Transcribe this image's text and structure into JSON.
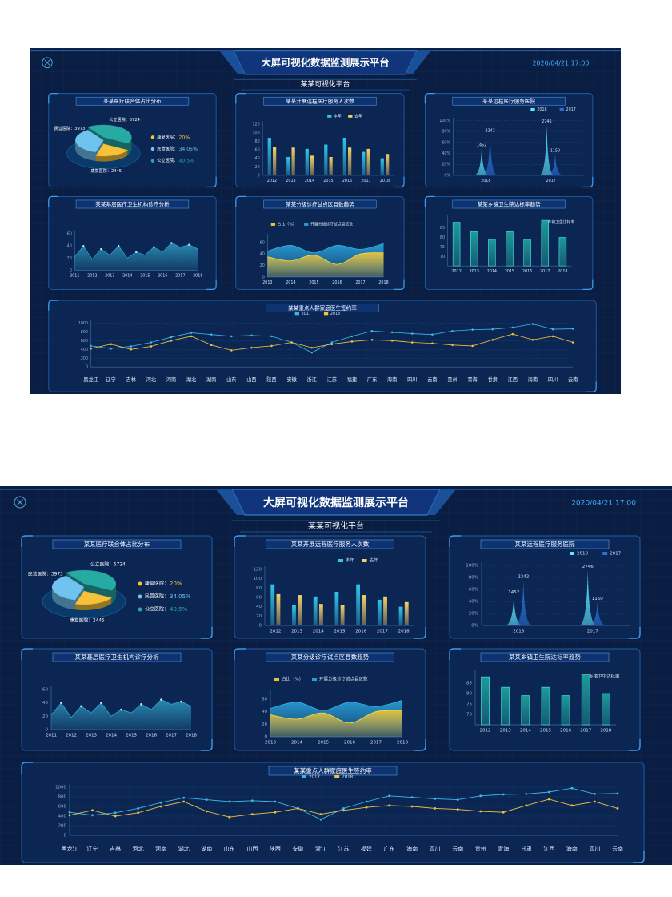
{
  "header": {
    "title": "大屏可视化数据监测展示平台",
    "subtitle": "某某可视化平台",
    "datetime": "2020/04/21 17:00"
  },
  "chart_data": [
    {
      "type": "pie",
      "title": "某某医疗联合体占比分布",
      "categories": [
        "康复医院",
        "民营医院",
        "公立医院"
      ],
      "legend_labels": [
        "康复医院：",
        "民营医院：",
        "公立医院："
      ],
      "values": [
        20,
        34.05,
        40.5
      ],
      "value_labels": [
        "20%",
        "34.05%",
        "40.5%"
      ],
      "colors": [
        "#f5c23a",
        "#6fc3f0",
        "#27a9a4"
      ],
      "counts": [
        2445,
        3973,
        5724
      ],
      "count_labels": [
        "康复医院：2445",
        "民营医院：3973",
        "公立医院：5724"
      ]
    },
    {
      "type": "bar",
      "title": "某某开展远程医疗服务人次数",
      "categories": [
        "2012",
        "2013",
        "2014",
        "2015",
        "2016",
        "2017",
        "2018"
      ],
      "series": [
        {
          "name": "本年",
          "color": "#31c6ea",
          "values": [
            88,
            43,
            62,
            72,
            88,
            55,
            40
          ]
        },
        {
          "name": "去年",
          "color": "#f4d068",
          "values": [
            67,
            65,
            46,
            43,
            65,
            62,
            50
          ]
        }
      ],
      "ylim": [
        0,
        120
      ],
      "yticks": [
        0,
        20,
        40,
        60,
        80,
        100,
        120
      ],
      "grid": false
    },
    {
      "type": "pictorial",
      "title": "某某远程医疗服务医院",
      "categories": [
        "2018",
        "2017"
      ],
      "series": [
        {
          "name": "2018",
          "color": "#5de6ff",
          "values": [
            1452,
            2746
          ]
        },
        {
          "name": "2017",
          "color": "#2a6fd8",
          "values": [
            2242,
            1150
          ]
        }
      ],
      "ylim": [
        0,
        3000
      ],
      "yticks": [
        {
          "value": 0,
          "label": "0%"
        },
        {
          "value": 600,
          "label": "20%"
        },
        {
          "value": 1200,
          "label": "40%"
        },
        {
          "value": 1800,
          "label": "60%"
        },
        {
          "value": 2400,
          "label": "80%"
        },
        {
          "value": 3000,
          "label": "100%"
        }
      ],
      "grid": true
    },
    {
      "type": "area",
      "title": "某某基层医疗卫生机构诊疗分析",
      "categories": [
        "2011",
        null,
        "2012",
        null,
        "2013",
        null,
        "2014",
        null,
        "2015",
        null,
        "2016",
        null,
        "2017",
        null,
        "2018"
      ],
      "values": [
        22,
        40,
        18,
        35,
        25,
        40,
        20,
        30,
        25,
        38,
        30,
        45,
        38,
        42,
        35
      ],
      "color": "#2a8fb5",
      "smooth": false,
      "ylim": [
        0,
        60
      ],
      "yticks": [
        0,
        20,
        40,
        60
      ],
      "grid": false
    },
    {
      "type": "area",
      "title": "某某分级诊疗试点区县数趋势",
      "categories": [
        "2013",
        "2014",
        "2015",
        "2016",
        "2017",
        "2018"
      ],
      "series": [
        {
          "name": "占比（%）",
          "color": "#e8c23a",
          "values": [
            35,
            28,
            38,
            22,
            40,
            42
          ]
        },
        {
          "name": "开展分级诊疗试点县区数",
          "color": "#2a9fd6",
          "values": [
            45,
            55,
            42,
            55,
            48,
            58
          ]
        }
      ],
      "smooth": true,
      "ylim": [
        0,
        70
      ],
      "yticks": [
        0,
        20,
        40,
        60
      ],
      "grid": false
    },
    {
      "type": "bar",
      "title": "某某乡镇卫生院达标率趋势",
      "categories": [
        "2012",
        "2013",
        "2014",
        "2015",
        "2016",
        "2017",
        "2018"
      ],
      "series": [
        {
          "name": "乡镇卫生达标率",
          "color": "#1d9a9a",
          "values": [
            88,
            83,
            79,
            83,
            79,
            89,
            80
          ]
        }
      ],
      "ylim": [
        65,
        90
      ],
      "yticks": [
        70,
        75,
        80,
        85
      ],
      "grid": false
    },
    {
      "type": "line",
      "title": "某某重点人群家庭医生签约率",
      "categories": [
        "黑龙江",
        "辽宁",
        "吉林",
        "河北",
        "河南",
        "湖北",
        "湖南",
        "山东",
        "山西",
        "陕西",
        "安徽",
        "浙江",
        "江苏",
        "福建",
        "广东",
        "海南",
        "四川",
        "云南",
        "贵州",
        "青海",
        "甘肃",
        "江西",
        "海南",
        "四川",
        "云南"
      ],
      "series": [
        {
          "name": "2017",
          "color": "#3bb8e8",
          "values": [
            480,
            420,
            470,
            560,
            680,
            780,
            740,
            700,
            720,
            700,
            560,
            330,
            560,
            700,
            820,
            790,
            760,
            740,
            820,
            850,
            860,
            900,
            980,
            860,
            870
          ]
        },
        {
          "name": "2018",
          "color": "#f0c040",
          "values": [
            420,
            520,
            400,
            470,
            600,
            700,
            500,
            380,
            440,
            480,
            560,
            440,
            520,
            580,
            620,
            600,
            560,
            540,
            500,
            480,
            620,
            750,
            620,
            700,
            560
          ]
        }
      ],
      "ylim": [
        0,
        1000
      ],
      "yticks": [
        0,
        200,
        400,
        600,
        800,
        1000
      ],
      "grid": true
    }
  ]
}
